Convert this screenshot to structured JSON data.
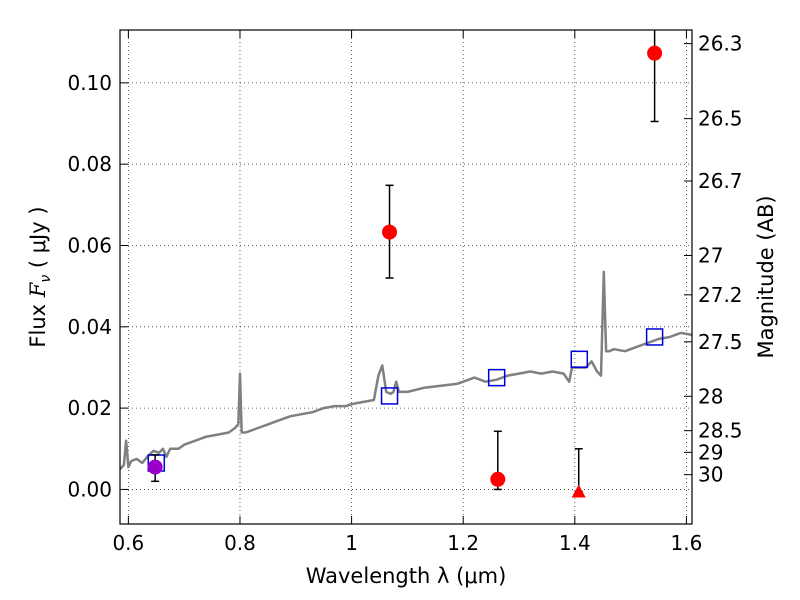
{
  "chart_data": {
    "type": "scatter",
    "xlabel": "Wavelength  λ (μm)",
    "ylabel_prefix": "Flux ",
    "ylabel_var": "F",
    "ylabel_sub": "ν",
    "ylabel_unit": " ( μJy )",
    "y2label": "Magnitude (AB)",
    "xlim": [
      0.585,
      1.61
    ],
    "ylim": [
      -0.0085,
      0.113
    ],
    "xticks": [
      0.6,
      0.8,
      1.0,
      1.2,
      1.4,
      1.6
    ],
    "xtick_labels": [
      "0.6",
      "0.8",
      "1",
      "1.2",
      "1.4",
      "1.6"
    ],
    "yticks": [
      0.0,
      0.02,
      0.04,
      0.06,
      0.08,
      0.1
    ],
    "ytick_labels": [
      "0.00",
      "0.02",
      "0.04",
      "0.06",
      "0.08",
      "0.10"
    ],
    "y2ticks": [
      {
        "label": "26.3",
        "mag": 26.3
      },
      {
        "label": "26.5",
        "mag": 26.5
      },
      {
        "label": "26.7",
        "mag": 26.7
      },
      {
        "label": "27",
        "mag": 27.0
      },
      {
        "label": "27.2",
        "mag": 27.2
      },
      {
        "label": "27.5",
        "mag": 27.5
      },
      {
        "label": "28",
        "mag": 28.0
      },
      {
        "label": "28.5",
        "mag": 28.5
      },
      {
        "label": "29",
        "mag": 29.0
      },
      {
        "label": "30",
        "mag": 30.0
      }
    ],
    "grid": true,
    "series": [
      {
        "kind": "line",
        "color": "#808080",
        "x": [
          0.585,
          0.592,
          0.596,
          0.6,
          0.605,
          0.615,
          0.625,
          0.635,
          0.645,
          0.655,
          0.662,
          0.668,
          0.675,
          0.69,
          0.7,
          0.72,
          0.74,
          0.76,
          0.78,
          0.79,
          0.797,
          0.8,
          0.803,
          0.81,
          0.83,
          0.85,
          0.87,
          0.89,
          0.91,
          0.93,
          0.95,
          0.97,
          0.99,
          1.0,
          1.02,
          1.04,
          1.048,
          1.055,
          1.062,
          1.07,
          1.075,
          1.08,
          1.085,
          1.1,
          1.13,
          1.16,
          1.19,
          1.2,
          1.22,
          1.24,
          1.26,
          1.28,
          1.3,
          1.32,
          1.34,
          1.36,
          1.38,
          1.39,
          1.395,
          1.4,
          1.42,
          1.43,
          1.44,
          1.447,
          1.452,
          1.456,
          1.462,
          1.47,
          1.49,
          1.51,
          1.53,
          1.55,
          1.57,
          1.59,
          1.61
        ],
        "y": [
          0.005,
          0.006,
          0.012,
          0.0055,
          0.007,
          0.0075,
          0.0065,
          0.0082,
          0.0095,
          0.009,
          0.01,
          0.008,
          0.01,
          0.01,
          0.011,
          0.012,
          0.013,
          0.0135,
          0.014,
          0.015,
          0.016,
          0.0285,
          0.014,
          0.014,
          0.015,
          0.016,
          0.017,
          0.018,
          0.0185,
          0.019,
          0.02,
          0.0205,
          0.0205,
          0.021,
          0.0215,
          0.022,
          0.028,
          0.0305,
          0.024,
          0.0235,
          0.024,
          0.0265,
          0.024,
          0.024,
          0.025,
          0.0255,
          0.026,
          0.0265,
          0.0275,
          0.0265,
          0.027,
          0.028,
          0.0285,
          0.029,
          0.0285,
          0.029,
          0.0285,
          0.0265,
          0.03,
          0.03,
          0.03,
          0.0315,
          0.029,
          0.028,
          0.0535,
          0.034,
          0.034,
          0.0345,
          0.034,
          0.035,
          0.036,
          0.037,
          0.0375,
          0.0385,
          0.038
        ]
      },
      {
        "kind": "markers",
        "marker": "square-open",
        "color": "#0000dd",
        "x": [
          0.65,
          1.068,
          1.26,
          1.408,
          1.543
        ],
        "y": [
          0.0065,
          0.023,
          0.0275,
          0.032,
          0.0375
        ]
      },
      {
        "kind": "markers",
        "marker": "circle",
        "color": "#ff0000",
        "x": [
          1.068,
          1.262,
          1.543
        ],
        "y": [
          0.0633,
          0.0025,
          0.1073
        ],
        "yerr_low": [
          0.052,
          0.0,
          0.0905
        ],
        "yerr_high": [
          0.0748,
          0.0143,
          0.115
        ]
      },
      {
        "kind": "markers",
        "marker": "triangle",
        "color": "#ff0000",
        "x": [
          1.407
        ],
        "y": [
          -0.0005
        ],
        "yerr_low": [
          -0.0005
        ],
        "yerr_high": [
          0.01
        ]
      },
      {
        "kind": "markers",
        "marker": "circle",
        "color": "#9900cc",
        "x": [
          0.648
        ],
        "y": [
          0.0055
        ],
        "yerr_low": [
          0.002
        ],
        "yerr_high": [
          0.0085
        ]
      }
    ]
  }
}
